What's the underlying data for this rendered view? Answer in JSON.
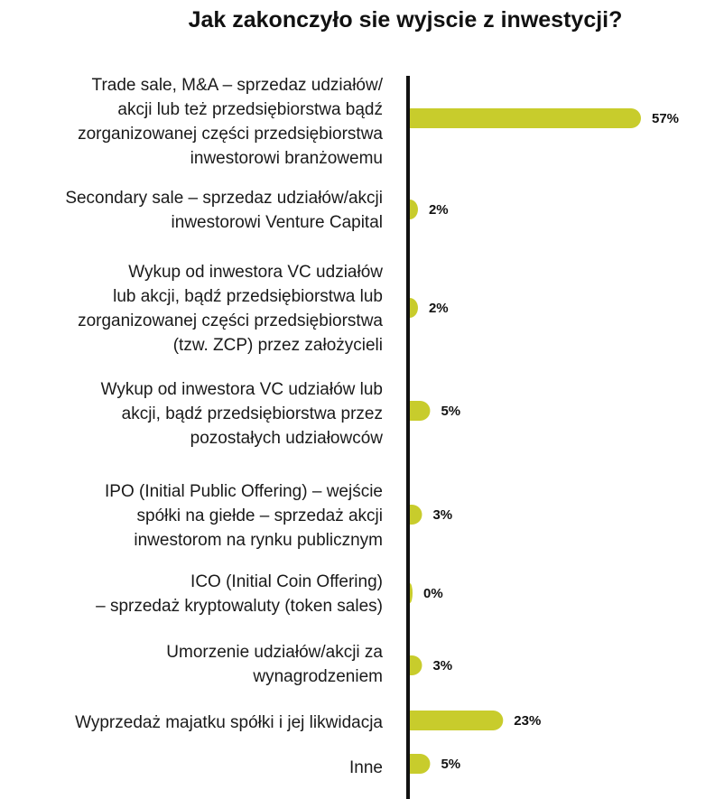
{
  "chart_data": {
    "type": "bar",
    "orientation": "horizontal",
    "title": "Jak zakonczyło sie wyjscie z inwestycji?",
    "bar_color": "#c8cc2c",
    "axis_color": "#111111",
    "xlim": [
      0,
      57
    ],
    "categories": [
      [
        "Trade sale, M&A – sprzedaz udziałów/",
        "akcji lub też przedsiębiorstwa bądź",
        "zorganizowanej części przedsiębiorstwa",
        "inwestorowi branżowemu"
      ],
      [
        "Secondary sale – sprzedaz udziałów/akcji",
        "inwestorowi Venture Capital"
      ],
      [
        "Wykup od inwestora VC udziałów",
        "lub akcji, bądź przedsiębiorstwa lub",
        "zorganizowanej części przedsiębiorstwa",
        "(tzw. ZCP) przez założycieli"
      ],
      [
        "Wykup od inwestora VC udziałów lub",
        "akcji, bądź przedsiębiorstwa przez",
        "pozostałych udziałowców"
      ],
      [
        "IPO (Initial Public Offering) – wejście",
        "spółki na giełde – sprzedaż akcji",
        "inwestorom na rynku publicznym"
      ],
      [
        "ICO (Initial Coin Offering)",
        "– sprzedaż kryptowaluty (token sales)"
      ],
      [
        "Umorzenie udziałów/akcji  za",
        "wynagrodzeniem"
      ],
      [
        "Wyprzedaż majatku spółki i jej likwidacja"
      ],
      [
        "Inne"
      ]
    ],
    "values": [
      57,
      2,
      2,
      5,
      3,
      0,
      3,
      23,
      5
    ],
    "value_labels": [
      "57%",
      "2%",
      "2%",
      "5%",
      "3%",
      "0%",
      "3%",
      "23%",
      "5%"
    ]
  }
}
